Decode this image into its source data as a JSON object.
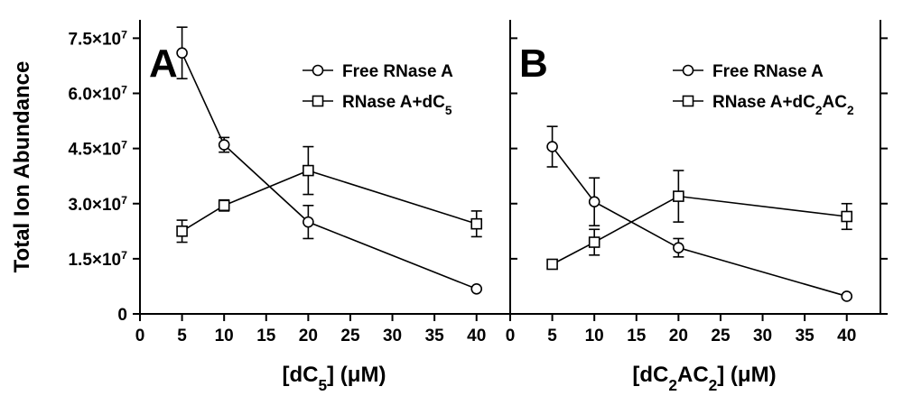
{
  "figure": {
    "y_axis_title": "Total Ion Abundance",
    "y_ticks": [
      {
        "value": 0,
        "label": "0",
        "exp": ""
      },
      {
        "value": 15000000,
        "label": "1.5×10",
        "exp": "7"
      },
      {
        "value": 30000000,
        "label": "3.0×10",
        "exp": "7"
      },
      {
        "value": 45000000,
        "label": "4.5×10",
        "exp": "7"
      },
      {
        "value": 60000000,
        "label": "6.0×10",
        "exp": "7"
      },
      {
        "value": 75000000,
        "label": "7.5×10",
        "exp": "7"
      }
    ],
    "x_ticks": [
      0,
      5,
      10,
      15,
      20,
      25,
      30,
      35,
      40
    ]
  },
  "chart_data": [
    {
      "type": "line",
      "panel": "A",
      "xlabel": "[dC5] (μM)",
      "xlabel_parts": [
        {
          "t": "[dC",
          "sub": false
        },
        {
          "t": "5",
          "sub": true
        },
        {
          "t": "] (μM)",
          "sub": false
        }
      ],
      "ylabel": "Total Ion Abundance",
      "xlim": [
        0,
        44
      ],
      "ylim": [
        0,
        80000000
      ],
      "legend_position": "top-right",
      "series": [
        {
          "name": "Free RNase A",
          "legend_parts": [
            {
              "t": "Free RNase A",
              "sub": false
            }
          ],
          "marker": "circle",
          "x": [
            5,
            10,
            20,
            40
          ],
          "y": [
            71000000,
            46000000,
            25000000,
            6800000
          ],
          "err": [
            7000000,
            2000000,
            4500000,
            0
          ]
        },
        {
          "name": "RNase A+dC5",
          "legend_parts": [
            {
              "t": "RNase A+dC",
              "sub": false
            },
            {
              "t": "5",
              "sub": true
            }
          ],
          "marker": "square",
          "x": [
            5,
            10,
            20,
            40
          ],
          "y": [
            22500000,
            29500000,
            39000000,
            24500000
          ],
          "err": [
            3000000,
            1500000,
            6500000,
            3500000
          ]
        }
      ]
    },
    {
      "type": "line",
      "panel": "B",
      "xlabel": "[dC2AC2] (μM)",
      "xlabel_parts": [
        {
          "t": "[dC",
          "sub": false
        },
        {
          "t": "2",
          "sub": true
        },
        {
          "t": "AC",
          "sub": false
        },
        {
          "t": "2",
          "sub": true
        },
        {
          "t": "] (μM)",
          "sub": false
        }
      ],
      "ylabel": "Total Ion Abundance",
      "xlim": [
        0,
        44
      ],
      "ylim": [
        0,
        80000000
      ],
      "legend_position": "top-right",
      "series": [
        {
          "name": "Free RNase A",
          "legend_parts": [
            {
              "t": "Free RNase A",
              "sub": false
            }
          ],
          "marker": "circle",
          "x": [
            5,
            10,
            20,
            40
          ],
          "y": [
            45500000,
            30500000,
            18000000,
            4800000
          ],
          "err": [
            5500000,
            6500000,
            2500000,
            0
          ]
        },
        {
          "name": "RNase A+dC2AC2",
          "legend_parts": [
            {
              "t": "RNase A+dC",
              "sub": false
            },
            {
              "t": "2",
              "sub": true
            },
            {
              "t": "AC",
              "sub": false
            },
            {
              "t": "2",
              "sub": true
            }
          ],
          "marker": "square",
          "x": [
            5,
            10,
            20,
            40
          ],
          "y": [
            13500000,
            19500000,
            32000000,
            26500000
          ],
          "err": [
            0,
            3500000,
            7000000,
            3500000
          ]
        }
      ]
    }
  ]
}
